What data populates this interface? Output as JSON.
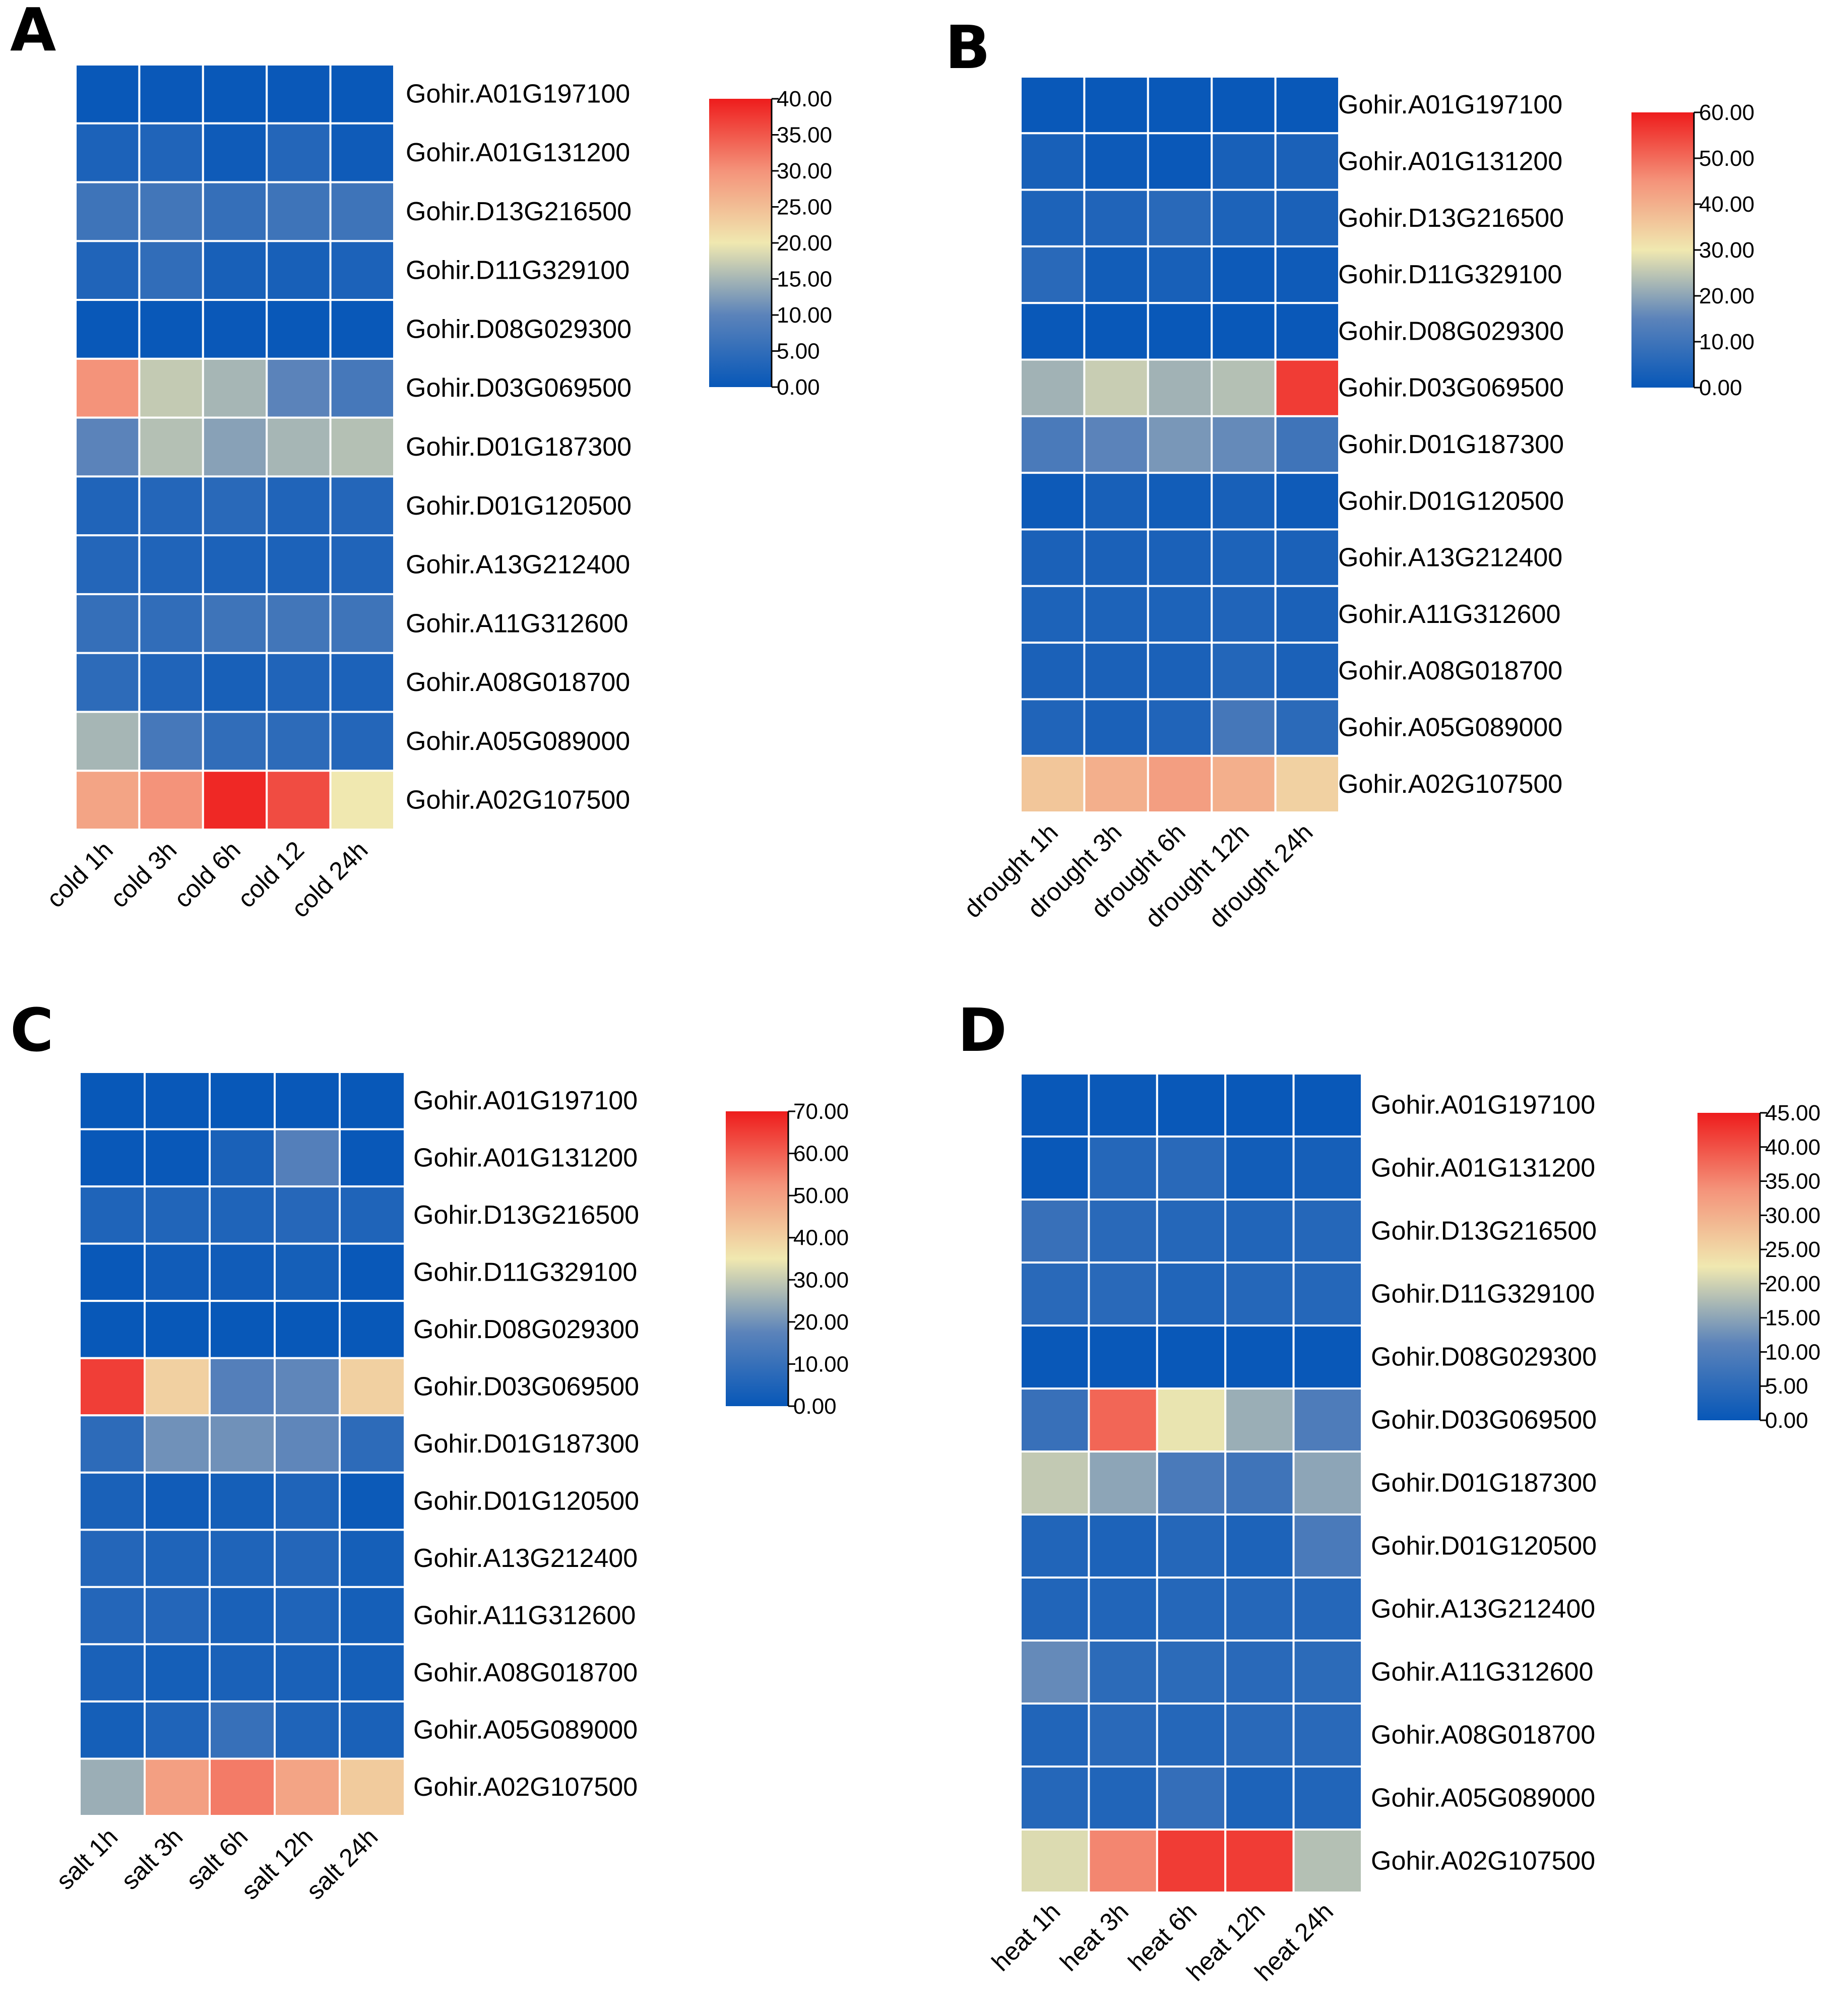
{
  "genes": [
    "Gohir.A01G197100",
    "Gohir.A01G131200",
    "Gohir.D13G216500",
    "Gohir.D11G329100",
    "Gohir.D08G029300",
    "Gohir.D03G069500",
    "Gohir.D01G187300",
    "Gohir.D01G120500",
    "Gohir.A13G212400",
    "Gohir.A11G312600",
    "Gohir.A08G018700",
    "Gohir.A05G089000",
    "Gohir.A02G107500"
  ],
  "colors": {
    "low": "#0757b8",
    "mid": "#f0e8b0",
    "high": "#ee1c1c"
  },
  "chart_data": [
    {
      "type": "heatmap",
      "panel": "A",
      "title": "",
      "categories": [
        "cold 1h",
        "cold 3h",
        "cold 6h",
        "cold 12",
        "cold 24h"
      ],
      "rows": [
        "Gohir.A01G197100",
        "Gohir.A01G131200",
        "Gohir.D13G216500",
        "Gohir.D11G329100",
        "Gohir.D08G029300",
        "Gohir.D03G069500",
        "Gohir.D01G187300",
        "Gohir.D01G120500",
        "Gohir.A13G212400",
        "Gohir.A11G312600",
        "Gohir.A08G018700",
        "Gohir.A05G089000",
        "Gohir.A02G107500"
      ],
      "values": [
        [
          0.2,
          0.3,
          0.2,
          0.3,
          0.2
        ],
        [
          2.5,
          3.0,
          1.0,
          3.5,
          1.0
        ],
        [
          6.5,
          7.0,
          5.5,
          6.5,
          6.5
        ],
        [
          3.0,
          5.0,
          2.0,
          2.0,
          2.5
        ],
        [
          0.2,
          0.2,
          0.3,
          0.2,
          0.2
        ],
        [
          30,
          17,
          15,
          10,
          7.5
        ],
        [
          10,
          16,
          13,
          15,
          16
        ],
        [
          3.0,
          3.5,
          4.0,
          3.0,
          3.5
        ],
        [
          3.5,
          3.0,
          2.5,
          2.5,
          3.0
        ],
        [
          5.5,
          5.0,
          6.5,
          7.0,
          6.5
        ],
        [
          4.5,
          3.0,
          2.0,
          3.0,
          2.5
        ],
        [
          15,
          7.5,
          5.0,
          4.5,
          3.5
        ],
        [
          28,
          30,
          39,
          36,
          20
        ]
      ],
      "ylim": [
        0,
        40
      ],
      "colorbar_ticks": [
        "0.00",
        "5.00",
        "10.00",
        "15.00",
        "20.00",
        "25.00",
        "30.00",
        "35.00",
        "40.00"
      ]
    },
    {
      "type": "heatmap",
      "panel": "B",
      "title": "",
      "categories": [
        "drought 1h",
        "drought 3h",
        "drought 6h",
        "drought 12h",
        "drought 24h"
      ],
      "rows": [
        "Gohir.A01G197100",
        "Gohir.A01G131200",
        "Gohir.D13G216500",
        "Gohir.D11G329100",
        "Gohir.D08G029300",
        "Gohir.D03G069500",
        "Gohir.D01G187300",
        "Gohir.D01G120500",
        "Gohir.A13G212400",
        "Gohir.A11G312600",
        "Gohir.A08G018700",
        "Gohir.A05G089000",
        "Gohir.A02G107500"
      ],
      "values": [
        [
          0.3,
          0.3,
          0.3,
          0.3,
          0.3
        ],
        [
          3.0,
          1.0,
          0.5,
          3.0,
          3.5
        ],
        [
          4.0,
          4.5,
          6.0,
          4.0,
          3.5
        ],
        [
          6.0,
          2.0,
          3.0,
          1.0,
          1.5
        ],
        [
          0.3,
          0.3,
          0.3,
          0.3,
          0.5
        ],
        [
          22,
          26,
          22,
          24,
          56
        ],
        [
          12,
          15,
          18,
          16,
          10
        ],
        [
          1.0,
          3.0,
          2.0,
          3.0,
          1.5
        ],
        [
          3.5,
          3.5,
          3.5,
          4.0,
          3.5
        ],
        [
          4.0,
          4.0,
          4.0,
          4.5,
          3.5
        ],
        [
          3.5,
          3.5,
          3.5,
          5.0,
          3.5
        ],
        [
          4.5,
          3.5,
          4.5,
          11,
          6.5
        ],
        [
          36,
          40,
          43,
          40,
          34
        ]
      ],
      "ylim": [
        0,
        60
      ],
      "colorbar_ticks": [
        "0.00",
        "10.00",
        "20.00",
        "30.00",
        "40.00",
        "50.00",
        "60.00"
      ]
    },
    {
      "type": "heatmap",
      "panel": "C",
      "title": "",
      "categories": [
        "salt 1h",
        "salt 3h",
        "salt 6h",
        "salt 12h",
        "salt 24h"
      ],
      "rows": [
        "Gohir.A01G197100",
        "Gohir.A01G131200",
        "Gohir.D13G216500",
        "Gohir.D11G329100",
        "Gohir.D08G029300",
        "Gohir.D03G069500",
        "Gohir.D01G187300",
        "Gohir.D01G120500",
        "Gohir.A13G212400",
        "Gohir.A11G312600",
        "Gohir.A08G018700",
        "Gohir.A05G089000",
        "Gohir.A02G107500"
      ],
      "values": [
        [
          0.3,
          0.5,
          0.3,
          0.5,
          0.3
        ],
        [
          0.5,
          0.5,
          4.0,
          16,
          0.5
        ],
        [
          5.0,
          5.5,
          5.0,
          6.5,
          5.0
        ],
        [
          0.5,
          2.0,
          2.0,
          3.0,
          0.5
        ],
        [
          0.3,
          0.3,
          0.3,
          0.3,
          0.3
        ],
        [
          65,
          40,
          16,
          18,
          40
        ],
        [
          8.0,
          20,
          20,
          18,
          8.0
        ],
        [
          4.0,
          2.0,
          3.0,
          5.0,
          1.0
        ],
        [
          6.0,
          5.0,
          5.0,
          6.0,
          3.0
        ],
        [
          6.0,
          6.0,
          4.0,
          5.0,
          3.0
        ],
        [
          4.0,
          3.0,
          4.0,
          4.0,
          3.0
        ],
        [
          3.0,
          5.0,
          10,
          5.0,
          4.0
        ],
        [
          25,
          50,
          56,
          49,
          41
        ]
      ],
      "ylim": [
        0,
        70
      ],
      "colorbar_ticks": [
        "0.00",
        "10.00",
        "20.00",
        "30.00",
        "40.00",
        "50.00",
        "60.00",
        "70.00"
      ]
    },
    {
      "type": "heatmap",
      "panel": "D",
      "title": "",
      "categories": [
        "heat 1h",
        "heat 3h",
        "heat 6h",
        "heat 12h",
        "heat 24h"
      ],
      "rows": [
        "Gohir.A01G197100",
        "Gohir.A01G131200",
        "Gohir.D13G216500",
        "Gohir.D11G329100",
        "Gohir.D08G029300",
        "Gohir.D03G069500",
        "Gohir.D01G187300",
        "Gohir.D01G120500",
        "Gohir.A13G212400",
        "Gohir.A11G312600",
        "Gohir.A08G018700",
        "Gohir.A05G089000",
        "Gohir.A02G107500"
      ],
      "values": [
        [
          0.3,
          0.5,
          0.3,
          0.3,
          0.3
        ],
        [
          0.3,
          4.0,
          4.5,
          1.5,
          2.0
        ],
        [
          6.5,
          4.5,
          4.0,
          3.5,
          4.0
        ],
        [
          4.5,
          4.5,
          3.5,
          4.0,
          4.0
        ],
        [
          0.3,
          0.3,
          0.3,
          0.3,
          0.3
        ],
        [
          6.5,
          38,
          22,
          16,
          9.5
        ],
        [
          19,
          15,
          9.0,
          7.5,
          15
        ],
        [
          3.5,
          3.0,
          4.0,
          3.0,
          9.0
        ],
        [
          3.5,
          3.5,
          4.0,
          4.0,
          4.0
        ],
        [
          12,
          5.0,
          5.0,
          4.5,
          5.0
        ],
        [
          3.5,
          4.5,
          4.0,
          4.5,
          4.5
        ],
        [
          4.0,
          3.5,
          6.0,
          3.0,
          3.5
        ],
        [
          21,
          35,
          42,
          42,
          18
        ]
      ],
      "ylim": [
        0,
        45
      ],
      "colorbar_ticks": [
        "0.00",
        "5.00",
        "10.00",
        "15.00",
        "20.00",
        "25.00",
        "30.00",
        "35.00",
        "40.00",
        "45.00"
      ]
    }
  ]
}
